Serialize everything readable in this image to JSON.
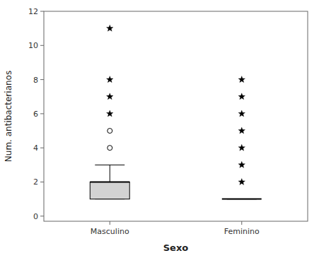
{
  "chart_data": {
    "type": "box",
    "xlabel": "Sexo",
    "ylabel": "Num. antibacterianos",
    "categories": [
      "Masculino",
      "Feminino"
    ],
    "boxes": [
      {
        "q1": 1,
        "median": 2,
        "q3": 2,
        "whisker_low": 1,
        "whisker_high": 3,
        "outliers": [
          4,
          5
        ],
        "extremes": [
          6,
          7,
          8,
          11
        ]
      },
      {
        "q1": 1,
        "median": 1,
        "q3": 1,
        "whisker_low": 1,
        "whisker_high": 1,
        "outliers": [],
        "extremes": [
          2,
          3,
          4,
          5,
          6,
          7,
          8
        ]
      }
    ],
    "color": "#d3d3d3",
    "ylim": [
      -0.3,
      12
    ],
    "yticks": [
      0,
      2,
      4,
      6,
      8,
      10,
      12
    ],
    "grid": false
  }
}
